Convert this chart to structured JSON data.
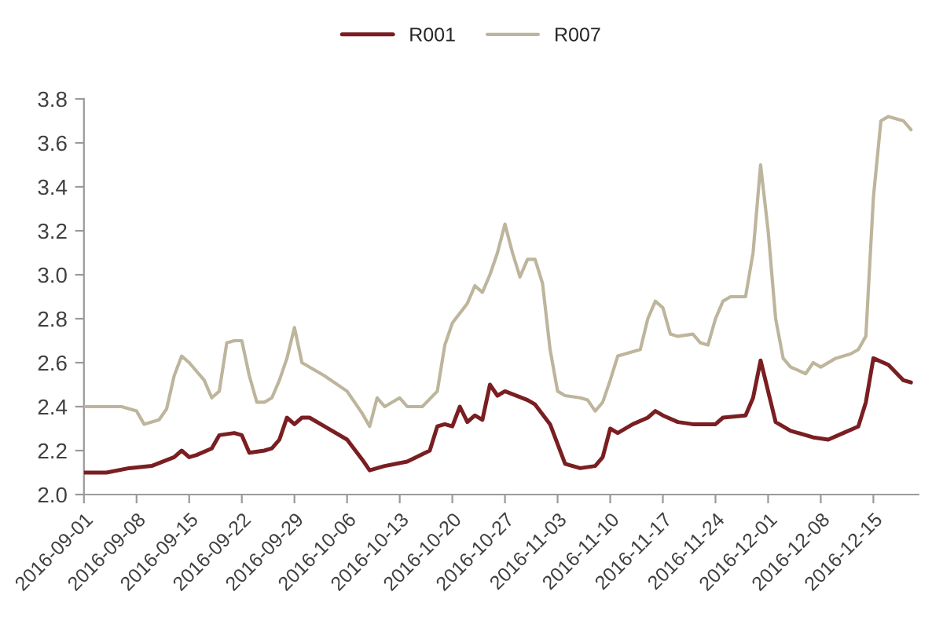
{
  "chart_data": {
    "type": "line",
    "xlim": [
      "2016-09-01",
      "2016-12-21"
    ],
    "xticks": [
      "2016-09-01",
      "2016-09-08",
      "2016-09-15",
      "2016-09-22",
      "2016-09-29",
      "2016-10-06",
      "2016-10-13",
      "2016-10-20",
      "2016-10-27",
      "2016-11-03",
      "2016-11-10",
      "2016-11-17",
      "2016-11-24",
      "2016-12-01",
      "2016-12-08",
      "2016-12-15"
    ],
    "ylim": [
      2.0,
      3.8
    ],
    "yticks": [
      {
        "value": 2,
        "label": "2.0"
      },
      2.2,
      2.4,
      2.6,
      2.8,
      {
        "value": 3,
        "label": "3.0"
      },
      3.2,
      3.4,
      3.6,
      3.8
    ],
    "legend": "top",
    "line_style": "solid",
    "series": [
      {
        "name": "R001",
        "color": "#7a1e22",
        "x": [
          "2016-09-01",
          "2016-09-04",
          "2016-09-07",
          "2016-09-10",
          "2016-09-13",
          "2016-09-14",
          "2016-09-15",
          "2016-09-16",
          "2016-09-18",
          "2016-09-19",
          "2016-09-21",
          "2016-09-22",
          "2016-09-23",
          "2016-09-25",
          "2016-09-26",
          "2016-09-27",
          "2016-09-28",
          "2016-09-29",
          "2016-09-30",
          "2016-10-01",
          "2016-10-03",
          "2016-10-06",
          "2016-10-08",
          "2016-10-09",
          "2016-10-10",
          "2016-10-11",
          "2016-10-14",
          "2016-10-17",
          "2016-10-18",
          "2016-10-19",
          "2016-10-20",
          "2016-10-21",
          "2016-10-22",
          "2016-10-23",
          "2016-10-24",
          "2016-10-25",
          "2016-10-26",
          "2016-10-27",
          "2016-10-30",
          "2016-10-31",
          "2016-11-02",
          "2016-11-03",
          "2016-11-04",
          "2016-11-06",
          "2016-11-08",
          "2016-11-09",
          "2016-11-10",
          "2016-11-11",
          "2016-11-13",
          "2016-11-15",
          "2016-11-16",
          "2016-11-17",
          "2016-11-19",
          "2016-11-21",
          "2016-11-24",
          "2016-11-25",
          "2016-11-28",
          "2016-11-29",
          "2016-11-30",
          "2016-12-01",
          "2016-12-02",
          "2016-12-04",
          "2016-12-07",
          "2016-12-09",
          "2016-12-11",
          "2016-12-13",
          "2016-12-14",
          "2016-12-15",
          "2016-12-17",
          "2016-12-19",
          "2016-12-20"
        ],
        "values": [
          2.1,
          2.1,
          2.12,
          2.13,
          2.17,
          2.2,
          2.17,
          2.18,
          2.21,
          2.27,
          2.28,
          2.27,
          2.19,
          2.2,
          2.21,
          2.25,
          2.35,
          2.32,
          2.35,
          2.35,
          2.31,
          2.25,
          2.16,
          2.11,
          2.12,
          2.13,
          2.15,
          2.2,
          2.31,
          2.32,
          2.31,
          2.4,
          2.33,
          2.36,
          2.34,
          2.5,
          2.45,
          2.47,
          2.43,
          2.41,
          2.32,
          2.23,
          2.14,
          2.12,
          2.13,
          2.17,
          2.3,
          2.28,
          2.32,
          2.35,
          2.38,
          2.36,
          2.33,
          2.32,
          2.32,
          2.35,
          2.36,
          2.44,
          2.61,
          2.47,
          2.33,
          2.29,
          2.26,
          2.25,
          2.28,
          2.31,
          2.42,
          2.62,
          2.59,
          2.52,
          2.51
        ]
      },
      {
        "name": "R007",
        "color": "#bdb59c",
        "x": [
          "2016-09-01",
          "2016-09-06",
          "2016-09-07",
          "2016-09-08",
          "2016-09-09",
          "2016-09-11",
          "2016-09-12",
          "2016-09-13",
          "2016-09-14",
          "2016-09-15",
          "2016-09-17",
          "2016-09-18",
          "2016-09-19",
          "2016-09-20",
          "2016-09-21",
          "2016-09-22",
          "2016-09-23",
          "2016-09-24",
          "2016-09-25",
          "2016-09-26",
          "2016-09-27",
          "2016-09-28",
          "2016-09-29",
          "2016-09-30",
          "2016-10-03",
          "2016-10-06",
          "2016-10-08",
          "2016-10-09",
          "2016-10-10",
          "2016-10-11",
          "2016-10-13",
          "2016-10-14",
          "2016-10-16",
          "2016-10-18",
          "2016-10-19",
          "2016-10-20",
          "2016-10-22",
          "2016-10-23",
          "2016-10-24",
          "2016-10-25",
          "2016-10-26",
          "2016-10-27",
          "2016-10-28",
          "2016-10-29",
          "2016-10-30",
          "2016-10-31",
          "2016-11-01",
          "2016-11-02",
          "2016-11-03",
          "2016-11-04",
          "2016-11-06",
          "2016-11-07",
          "2016-11-08",
          "2016-11-09",
          "2016-11-10",
          "2016-11-11",
          "2016-11-12",
          "2016-11-14",
          "2016-11-15",
          "2016-11-16",
          "2016-11-17",
          "2016-11-18",
          "2016-11-19",
          "2016-11-21",
          "2016-11-22",
          "2016-11-23",
          "2016-11-24",
          "2016-11-25",
          "2016-11-26",
          "2016-11-28",
          "2016-11-29",
          "2016-11-30",
          "2016-12-01",
          "2016-12-02",
          "2016-12-03",
          "2016-12-04",
          "2016-12-06",
          "2016-12-07",
          "2016-12-08",
          "2016-12-10",
          "2016-12-12",
          "2016-12-13",
          "2016-12-14",
          "2016-12-15",
          "2016-12-16",
          "2016-12-17",
          "2016-12-18",
          "2016-12-19",
          "2016-12-20"
        ],
        "values": [
          2.4,
          2.4,
          2.39,
          2.38,
          2.32,
          2.34,
          2.39,
          2.54,
          2.63,
          2.6,
          2.52,
          2.44,
          2.47,
          2.69,
          2.7,
          2.7,
          2.54,
          2.42,
          2.42,
          2.44,
          2.52,
          2.62,
          2.76,
          2.6,
          2.54,
          2.47,
          2.37,
          2.31,
          2.44,
          2.4,
          2.44,
          2.4,
          2.4,
          2.47,
          2.68,
          2.78,
          2.87,
          2.95,
          2.92,
          3.0,
          3.1,
          3.23,
          3.1,
          2.99,
          3.07,
          3.07,
          2.96,
          2.66,
          2.47,
          2.45,
          2.44,
          2.43,
          2.38,
          2.42,
          2.52,
          2.63,
          2.64,
          2.66,
          2.8,
          2.88,
          2.85,
          2.73,
          2.72,
          2.73,
          2.69,
          2.68,
          2.8,
          2.88,
          2.9,
          2.9,
          3.1,
          3.5,
          3.2,
          2.8,
          2.62,
          2.58,
          2.55,
          2.6,
          2.58,
          2.62,
          2.64,
          2.66,
          2.72,
          3.35,
          3.7,
          3.72,
          3.71,
          3.7,
          3.66
        ]
      }
    ]
  }
}
